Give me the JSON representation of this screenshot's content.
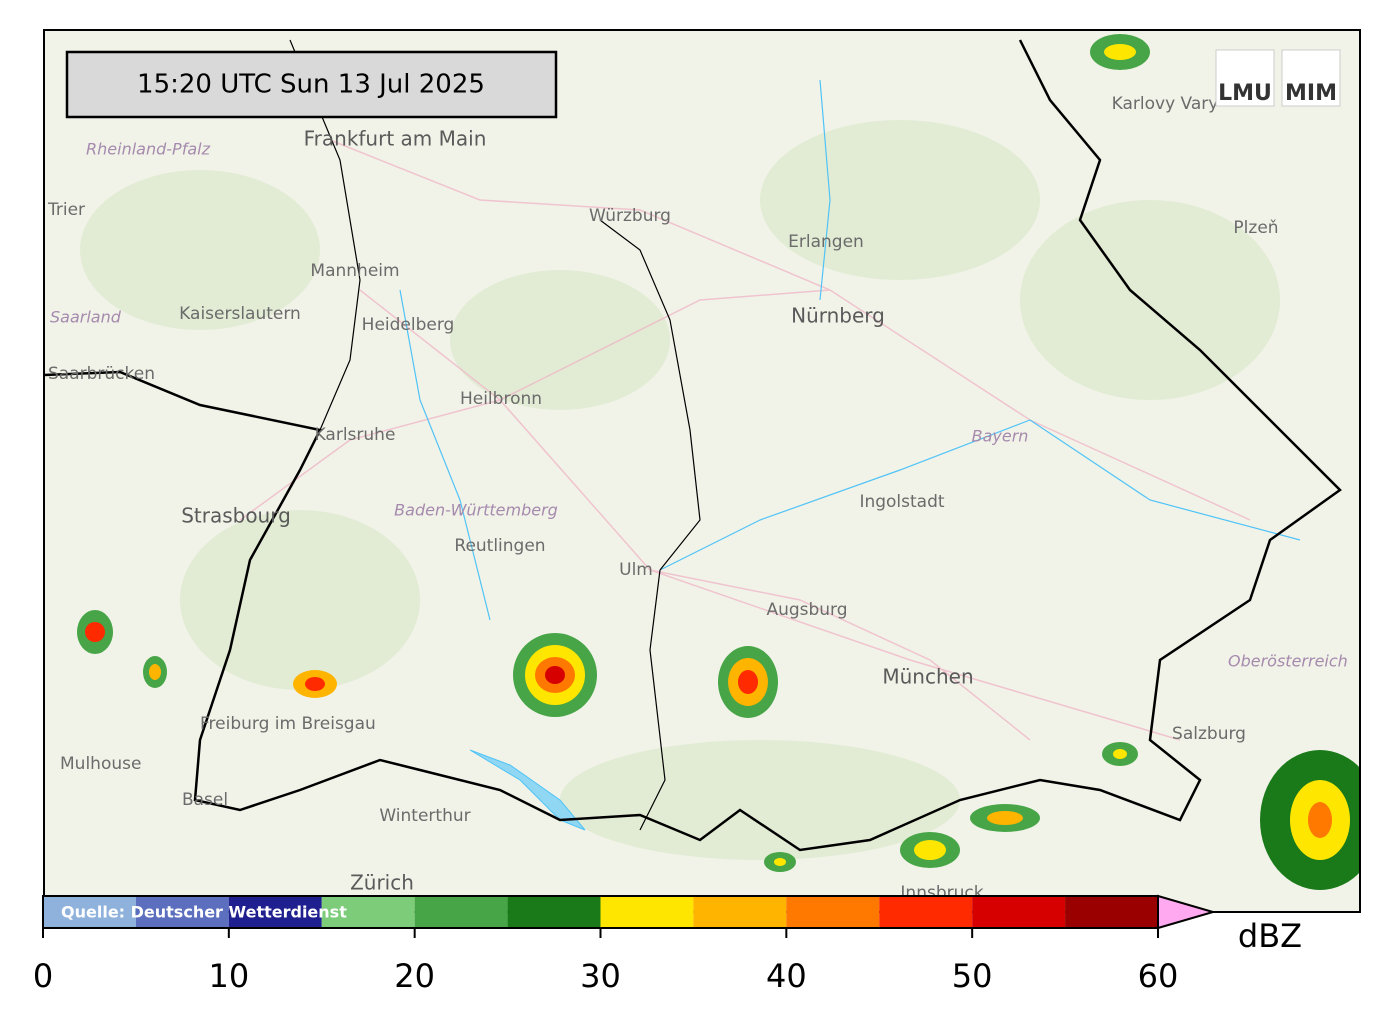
{
  "timestamp": "15:20 UTC  Sun 13 Jul 2025",
  "logo": {
    "left": "LMU",
    "right": "MIM"
  },
  "places": {
    "cities": [
      "Frankfurt am Main",
      "Trier",
      "Kaiserslautern",
      "Mannheim",
      "Heidelberg",
      "Würzburg",
      "Erlangen",
      "Nürnberg",
      "Heilbronn",
      "Karlsruhe",
      "Saarbrücken",
      "Strasbourg",
      "Reutlingen",
      "Ulm",
      "Augsburg",
      "Ingolstadt",
      "München",
      "Freiburg im Breisgau",
      "Mulhouse",
      "Basel",
      "Winterthur",
      "Zürich",
      "Innsbruck",
      "Salzburg",
      "Karlovy Vary",
      "Plzeň"
    ],
    "regions": [
      "Rheinland-Pfalz",
      "Saarland",
      "Baden-Württemberg",
      "Bayern",
      "Oberösterreich"
    ]
  },
  "colorbar": {
    "bounds": [
      0,
      5,
      10,
      15,
      20,
      25,
      30,
      35,
      40,
      45,
      50,
      55,
      60
    ],
    "colors": [
      "#8eb2dc",
      "#5b6fbe",
      "#1f1f8f",
      "#7ccc7a",
      "#47a547",
      "#1a7a1a",
      "#ffe600",
      "#ffb400",
      "#ff7800",
      "#ff2a00",
      "#d70000",
      "#9b0000"
    ],
    "extend_color": "#ffaaf0",
    "ticks": [
      0,
      10,
      20,
      30,
      40,
      50,
      60
    ],
    "unit": "dBZ",
    "source": "Quelle: Deutscher Wetterdienst"
  }
}
